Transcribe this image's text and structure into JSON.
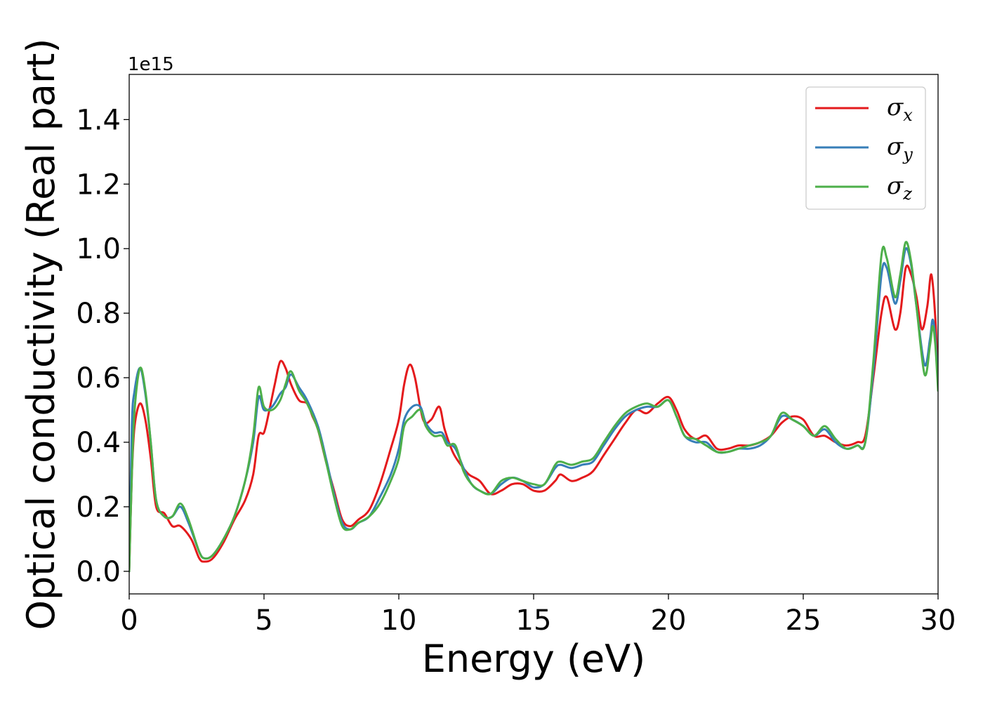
{
  "chart_data": {
    "type": "line",
    "title": "",
    "xlabel": "Energy (eV)",
    "ylabel": "Optical conductivity (Real part)",
    "y_offset_text": "1e15",
    "xlim": [
      0,
      30
    ],
    "ylim": [
      -0.07,
      1.54
    ],
    "y_scale": 1000000000000000.0,
    "x_ticks": [
      0,
      5,
      10,
      15,
      20,
      25,
      30
    ],
    "x_tick_labels": [
      "0",
      "5",
      "10",
      "15",
      "20",
      "25",
      "30"
    ],
    "y_ticks": [
      0.0,
      0.2,
      0.4,
      0.6,
      0.8,
      1.0,
      1.2,
      1.4
    ],
    "y_tick_labels": [
      "0.0",
      "0.2",
      "0.4",
      "0.6",
      "0.8",
      "1.0",
      "1.2",
      "1.4"
    ],
    "grid": false,
    "legend_position": "top-right",
    "series": [
      {
        "name": "σx",
        "symbol": "σ",
        "subscript": "x",
        "color": "#e41a1c",
        "points": [
          [
            0,
            0
          ],
          [
            0.1,
            0.3
          ],
          [
            0.2,
            0.45
          ],
          [
            0.4,
            0.52
          ],
          [
            0.6,
            0.47
          ],
          [
            0.8,
            0.35
          ],
          [
            1.0,
            0.2
          ],
          [
            1.3,
            0.18
          ],
          [
            1.6,
            0.14
          ],
          [
            1.9,
            0.14
          ],
          [
            2.3,
            0.1
          ],
          [
            2.6,
            0.04
          ],
          [
            2.8,
            0.03
          ],
          [
            3.1,
            0.04
          ],
          [
            3.5,
            0.09
          ],
          [
            3.9,
            0.16
          ],
          [
            4.3,
            0.22
          ],
          [
            4.6,
            0.3
          ],
          [
            4.8,
            0.42
          ],
          [
            5.0,
            0.43
          ],
          [
            5.2,
            0.5
          ],
          [
            5.4,
            0.58
          ],
          [
            5.6,
            0.65
          ],
          [
            5.8,
            0.63
          ],
          [
            6.0,
            0.58
          ],
          [
            6.3,
            0.53
          ],
          [
            6.6,
            0.52
          ],
          [
            6.8,
            0.48
          ],
          [
            7.0,
            0.44
          ],
          [
            7.3,
            0.34
          ],
          [
            7.6,
            0.25
          ],
          [
            7.9,
            0.16
          ],
          [
            8.2,
            0.14
          ],
          [
            8.5,
            0.16
          ],
          [
            8.9,
            0.19
          ],
          [
            9.3,
            0.27
          ],
          [
            9.7,
            0.38
          ],
          [
            10.0,
            0.47
          ],
          [
            10.2,
            0.58
          ],
          [
            10.4,
            0.64
          ],
          [
            10.6,
            0.6
          ],
          [
            10.9,
            0.47
          ],
          [
            11.2,
            0.47
          ],
          [
            11.5,
            0.51
          ],
          [
            11.7,
            0.44
          ],
          [
            12.0,
            0.37
          ],
          [
            12.3,
            0.33
          ],
          [
            12.6,
            0.3
          ],
          [
            13.0,
            0.28
          ],
          [
            13.4,
            0.24
          ],
          [
            13.8,
            0.25
          ],
          [
            14.2,
            0.27
          ],
          [
            14.6,
            0.27
          ],
          [
            15.0,
            0.25
          ],
          [
            15.4,
            0.25
          ],
          [
            15.8,
            0.28
          ],
          [
            16.0,
            0.3
          ],
          [
            16.4,
            0.28
          ],
          [
            16.8,
            0.29
          ],
          [
            17.2,
            0.31
          ],
          [
            17.6,
            0.36
          ],
          [
            18.0,
            0.41
          ],
          [
            18.4,
            0.46
          ],
          [
            18.8,
            0.5
          ],
          [
            19.2,
            0.49
          ],
          [
            19.6,
            0.52
          ],
          [
            20.0,
            0.54
          ],
          [
            20.3,
            0.5
          ],
          [
            20.6,
            0.44
          ],
          [
            21.0,
            0.41
          ],
          [
            21.4,
            0.42
          ],
          [
            21.8,
            0.38
          ],
          [
            22.2,
            0.38
          ],
          [
            22.6,
            0.39
          ],
          [
            23.0,
            0.39
          ],
          [
            23.4,
            0.4
          ],
          [
            23.8,
            0.42
          ],
          [
            24.2,
            0.46
          ],
          [
            24.6,
            0.48
          ],
          [
            25.0,
            0.47
          ],
          [
            25.4,
            0.42
          ],
          [
            25.8,
            0.42
          ],
          [
            26.2,
            0.4
          ],
          [
            26.6,
            0.39
          ],
          [
            27.0,
            0.4
          ],
          [
            27.3,
            0.42
          ],
          [
            27.6,
            0.6
          ],
          [
            27.9,
            0.8
          ],
          [
            28.1,
            0.85
          ],
          [
            28.4,
            0.75
          ],
          [
            28.6,
            0.8
          ],
          [
            28.8,
            0.94
          ],
          [
            29.0,
            0.92
          ],
          [
            29.2,
            0.85
          ],
          [
            29.4,
            0.75
          ],
          [
            29.6,
            0.82
          ],
          [
            29.75,
            0.92
          ],
          [
            29.9,
            0.78
          ],
          [
            30.0,
            0.58
          ]
        ]
      },
      {
        "name": "σy",
        "symbol": "σ",
        "subscript": "y",
        "color": "#377eb8",
        "points": [
          [
            0,
            0
          ],
          [
            0.1,
            0.45
          ],
          [
            0.2,
            0.56
          ],
          [
            0.4,
            0.63
          ],
          [
            0.6,
            0.55
          ],
          [
            0.8,
            0.4
          ],
          [
            1.0,
            0.22
          ],
          [
            1.3,
            0.17
          ],
          [
            1.6,
            0.17
          ],
          [
            1.9,
            0.2
          ],
          [
            2.2,
            0.15
          ],
          [
            2.6,
            0.06
          ],
          [
            2.8,
            0.04
          ],
          [
            3.1,
            0.05
          ],
          [
            3.5,
            0.1
          ],
          [
            3.9,
            0.17
          ],
          [
            4.3,
            0.28
          ],
          [
            4.6,
            0.4
          ],
          [
            4.8,
            0.54
          ],
          [
            5.0,
            0.5
          ],
          [
            5.3,
            0.51
          ],
          [
            5.6,
            0.55
          ],
          [
            5.8,
            0.57
          ],
          [
            6.0,
            0.61
          ],
          [
            6.3,
            0.57
          ],
          [
            6.6,
            0.53
          ],
          [
            7.0,
            0.45
          ],
          [
            7.3,
            0.35
          ],
          [
            7.6,
            0.24
          ],
          [
            7.9,
            0.15
          ],
          [
            8.2,
            0.13
          ],
          [
            8.5,
            0.15
          ],
          [
            8.9,
            0.17
          ],
          [
            9.3,
            0.23
          ],
          [
            9.7,
            0.3
          ],
          [
            10.0,
            0.38
          ],
          [
            10.2,
            0.47
          ],
          [
            10.5,
            0.51
          ],
          [
            10.8,
            0.51
          ],
          [
            11.0,
            0.46
          ],
          [
            11.3,
            0.43
          ],
          [
            11.6,
            0.43
          ],
          [
            11.8,
            0.4
          ],
          [
            12.1,
            0.38
          ],
          [
            12.4,
            0.32
          ],
          [
            12.7,
            0.27
          ],
          [
            13.0,
            0.25
          ],
          [
            13.4,
            0.24
          ],
          [
            13.8,
            0.27
          ],
          [
            14.2,
            0.29
          ],
          [
            14.6,
            0.28
          ],
          [
            15.0,
            0.26
          ],
          [
            15.4,
            0.27
          ],
          [
            15.8,
            0.32
          ],
          [
            16.0,
            0.33
          ],
          [
            16.4,
            0.32
          ],
          [
            16.8,
            0.33
          ],
          [
            17.2,
            0.34
          ],
          [
            17.6,
            0.39
          ],
          [
            18.0,
            0.44
          ],
          [
            18.4,
            0.48
          ],
          [
            18.8,
            0.5
          ],
          [
            19.2,
            0.51
          ],
          [
            19.6,
            0.51
          ],
          [
            20.0,
            0.53
          ],
          [
            20.3,
            0.48
          ],
          [
            20.6,
            0.42
          ],
          [
            21.0,
            0.4
          ],
          [
            21.4,
            0.4
          ],
          [
            21.8,
            0.37
          ],
          [
            22.2,
            0.37
          ],
          [
            22.6,
            0.38
          ],
          [
            23.0,
            0.38
          ],
          [
            23.4,
            0.39
          ],
          [
            23.8,
            0.42
          ],
          [
            24.2,
            0.48
          ],
          [
            24.6,
            0.47
          ],
          [
            25.0,
            0.45
          ],
          [
            25.4,
            0.42
          ],
          [
            25.8,
            0.44
          ],
          [
            26.2,
            0.4
          ],
          [
            26.6,
            0.38
          ],
          [
            27.0,
            0.39
          ],
          [
            27.3,
            0.4
          ],
          [
            27.6,
            0.62
          ],
          [
            27.9,
            0.92
          ],
          [
            28.1,
            0.94
          ],
          [
            28.4,
            0.83
          ],
          [
            28.6,
            0.9
          ],
          [
            28.8,
            1.0
          ],
          [
            29.0,
            0.95
          ],
          [
            29.2,
            0.82
          ],
          [
            29.5,
            0.64
          ],
          [
            29.7,
            0.72
          ],
          [
            29.8,
            0.78
          ],
          [
            29.9,
            0.72
          ],
          [
            30.0,
            0.58
          ]
        ]
      },
      {
        "name": "σz",
        "symbol": "σ",
        "subscript": "z",
        "color": "#4daf4a",
        "points": [
          [
            0,
            0
          ],
          [
            0.1,
            0.3
          ],
          [
            0.2,
            0.5
          ],
          [
            0.4,
            0.63
          ],
          [
            0.6,
            0.56
          ],
          [
            0.8,
            0.4
          ],
          [
            1.0,
            0.22
          ],
          [
            1.3,
            0.17
          ],
          [
            1.6,
            0.17
          ],
          [
            1.9,
            0.21
          ],
          [
            2.2,
            0.16
          ],
          [
            2.6,
            0.06
          ],
          [
            2.8,
            0.04
          ],
          [
            3.1,
            0.05
          ],
          [
            3.5,
            0.1
          ],
          [
            3.9,
            0.17
          ],
          [
            4.3,
            0.28
          ],
          [
            4.6,
            0.42
          ],
          [
            4.8,
            0.57
          ],
          [
            5.0,
            0.51
          ],
          [
            5.3,
            0.5
          ],
          [
            5.6,
            0.53
          ],
          [
            5.8,
            0.58
          ],
          [
            6.0,
            0.62
          ],
          [
            6.3,
            0.56
          ],
          [
            6.6,
            0.52
          ],
          [
            7.0,
            0.44
          ],
          [
            7.3,
            0.34
          ],
          [
            7.6,
            0.23
          ],
          [
            7.9,
            0.14
          ],
          [
            8.2,
            0.13
          ],
          [
            8.5,
            0.15
          ],
          [
            8.9,
            0.17
          ],
          [
            9.3,
            0.21
          ],
          [
            9.7,
            0.28
          ],
          [
            10.0,
            0.35
          ],
          [
            10.2,
            0.45
          ],
          [
            10.5,
            0.48
          ],
          [
            10.8,
            0.5
          ],
          [
            11.0,
            0.45
          ],
          [
            11.3,
            0.42
          ],
          [
            11.6,
            0.42
          ],
          [
            11.8,
            0.39
          ],
          [
            12.1,
            0.39
          ],
          [
            12.4,
            0.31
          ],
          [
            12.7,
            0.27
          ],
          [
            13.0,
            0.25
          ],
          [
            13.4,
            0.24
          ],
          [
            13.8,
            0.28
          ],
          [
            14.2,
            0.29
          ],
          [
            14.6,
            0.28
          ],
          [
            15.0,
            0.27
          ],
          [
            15.4,
            0.27
          ],
          [
            15.8,
            0.33
          ],
          [
            16.0,
            0.34
          ],
          [
            16.4,
            0.33
          ],
          [
            16.8,
            0.34
          ],
          [
            17.2,
            0.35
          ],
          [
            17.6,
            0.4
          ],
          [
            18.0,
            0.45
          ],
          [
            18.4,
            0.49
          ],
          [
            18.8,
            0.51
          ],
          [
            19.2,
            0.52
          ],
          [
            19.6,
            0.51
          ],
          [
            20.0,
            0.53
          ],
          [
            20.3,
            0.48
          ],
          [
            20.6,
            0.42
          ],
          [
            21.0,
            0.41
          ],
          [
            21.4,
            0.39
          ],
          [
            21.8,
            0.37
          ],
          [
            22.2,
            0.37
          ],
          [
            22.6,
            0.38
          ],
          [
            23.0,
            0.39
          ],
          [
            23.4,
            0.4
          ],
          [
            23.8,
            0.42
          ],
          [
            24.2,
            0.49
          ],
          [
            24.6,
            0.47
          ],
          [
            25.0,
            0.45
          ],
          [
            25.4,
            0.42
          ],
          [
            25.8,
            0.45
          ],
          [
            26.2,
            0.41
          ],
          [
            26.6,
            0.38
          ],
          [
            27.0,
            0.39
          ],
          [
            27.3,
            0.4
          ],
          [
            27.6,
            0.65
          ],
          [
            27.9,
            0.98
          ],
          [
            28.1,
            0.97
          ],
          [
            28.4,
            0.85
          ],
          [
            28.6,
            0.92
          ],
          [
            28.8,
            1.02
          ],
          [
            29.0,
            0.96
          ],
          [
            29.2,
            0.82
          ],
          [
            29.5,
            0.61
          ],
          [
            29.7,
            0.7
          ],
          [
            29.8,
            0.76
          ],
          [
            29.9,
            0.7
          ],
          [
            30.0,
            0.56
          ]
        ]
      }
    ]
  }
}
